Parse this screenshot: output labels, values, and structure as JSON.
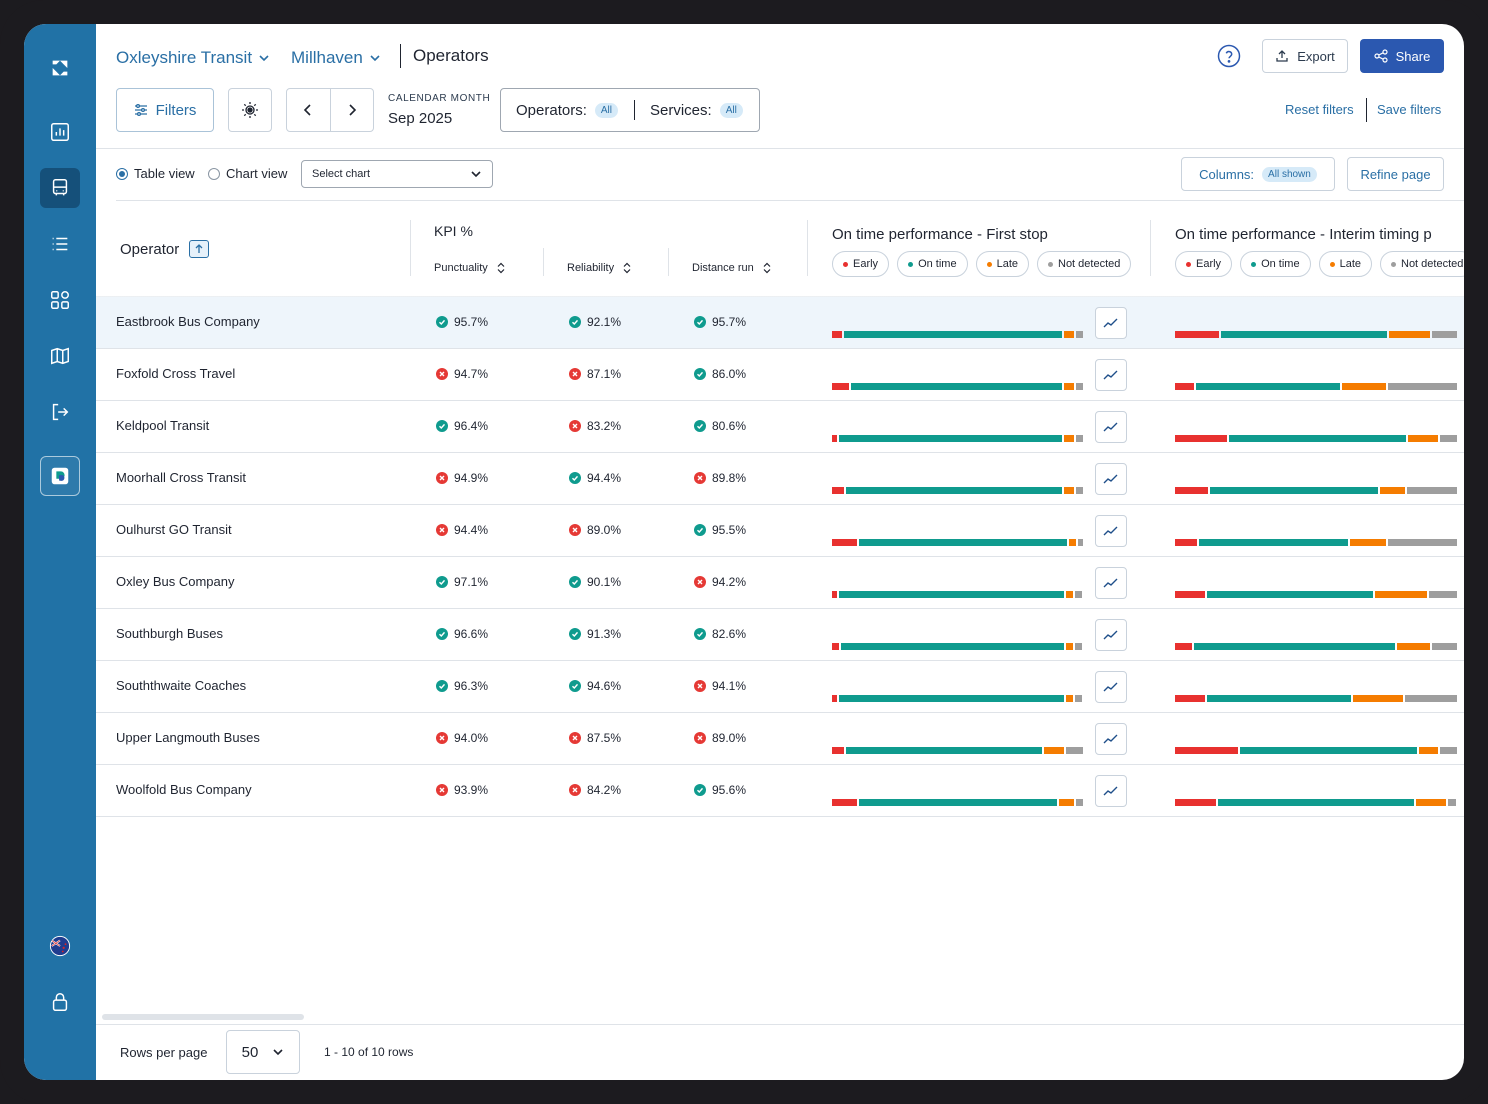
{
  "header": {
    "breadcrumb": [
      {
        "label": "Oxleyshire Transit"
      },
      {
        "label": "Millhaven"
      }
    ],
    "current": "Operators",
    "export_label": "Export",
    "share_label": "Share"
  },
  "filterbar": {
    "filters_label": "Filters",
    "calendar_label": "CALENDAR MONTH",
    "calendar_value": "Sep 2025",
    "operators_label": "Operators:",
    "operators_value": "All",
    "services_label": "Services:",
    "services_value": "All",
    "reset_label": "Reset filters",
    "save_label": "Save filters"
  },
  "viewbar": {
    "table_view": "Table view",
    "chart_view": "Chart view",
    "selected_view": "table",
    "select_chart_placeholder": "Select chart",
    "columns_label": "Columns:",
    "columns_value": "All shown",
    "refine_label": "Refine page"
  },
  "table": {
    "operator_header": "Operator",
    "kpi_header": "KPI %",
    "kpi_columns": [
      "Punctuality",
      "Reliability",
      "Distance run"
    ],
    "otp_groups": [
      {
        "title": "On time performance - First stop"
      },
      {
        "title": "On time performance - Interim timing p"
      }
    ],
    "legend": [
      {
        "label": "Early",
        "color": "#e8312f"
      },
      {
        "label": "On time",
        "color": "#0f9b8e"
      },
      {
        "label": "Late",
        "color": "#f57c00"
      },
      {
        "label": "Not detected",
        "color": "#9e9e9e"
      }
    ],
    "rows": [
      {
        "name": "Eastbrook Bus Company",
        "kpis": [
          {
            "v": "95.7%",
            "ok": true
          },
          {
            "v": "92.1%",
            "ok": true
          },
          {
            "v": "95.7%",
            "ok": true
          }
        ],
        "first": [
          4,
          89,
          4,
          3
        ],
        "interim": [
          16,
          60,
          15,
          9
        ]
      },
      {
        "name": "Foxfold Cross Travel",
        "kpis": [
          {
            "v": "94.7%",
            "ok": false
          },
          {
            "v": "87.1%",
            "ok": false
          },
          {
            "v": "86.0%",
            "ok": true
          }
        ],
        "first": [
          7,
          86,
          4,
          3
        ],
        "interim": [
          7,
          52,
          16,
          25
        ]
      },
      {
        "name": "Keldpool Transit",
        "kpis": [
          {
            "v": "96.4%",
            "ok": true
          },
          {
            "v": "83.2%",
            "ok": false
          },
          {
            "v": "80.6%",
            "ok": true
          }
        ],
        "first": [
          2,
          91,
          4,
          3
        ],
        "interim": [
          19,
          64,
          11,
          6
        ]
      },
      {
        "name": "Moorhall Cross Transit",
        "kpis": [
          {
            "v": "94.9%",
            "ok": false
          },
          {
            "v": "94.4%",
            "ok": true
          },
          {
            "v": "89.8%",
            "ok": false
          }
        ],
        "first": [
          5,
          88,
          4,
          3
        ],
        "interim": [
          12,
          61,
          9,
          18
        ]
      },
      {
        "name": "Oulhurst GO Transit",
        "kpis": [
          {
            "v": "94.4%",
            "ok": false
          },
          {
            "v": "89.0%",
            "ok": false
          },
          {
            "v": "95.5%",
            "ok": true
          }
        ],
        "first": [
          10,
          85,
          3,
          2
        ],
        "interim": [
          8,
          54,
          13,
          25
        ]
      },
      {
        "name": "Oxley Bus Company",
        "kpis": [
          {
            "v": "97.1%",
            "ok": true
          },
          {
            "v": "90.1%",
            "ok": true
          },
          {
            "v": "94.2%",
            "ok": false
          }
        ],
        "first": [
          2,
          92,
          3,
          3
        ],
        "interim": [
          11,
          60,
          19,
          10
        ]
      },
      {
        "name": "Southburgh Buses",
        "kpis": [
          {
            "v": "96.6%",
            "ok": true
          },
          {
            "v": "91.3%",
            "ok": true
          },
          {
            "v": "82.6%",
            "ok": true
          }
        ],
        "first": [
          3,
          91,
          3,
          3
        ],
        "interim": [
          6,
          73,
          12,
          9
        ]
      },
      {
        "name": "Souththwaite Coaches",
        "kpis": [
          {
            "v": "96.3%",
            "ok": true
          },
          {
            "v": "94.6%",
            "ok": true
          },
          {
            "v": "94.1%",
            "ok": false
          }
        ],
        "first": [
          2,
          92,
          3,
          3
        ],
        "interim": [
          11,
          52,
          18,
          19
        ]
      },
      {
        "name": "Upper Langmouth Buses",
        "kpis": [
          {
            "v": "94.0%",
            "ok": false
          },
          {
            "v": "87.5%",
            "ok": false
          },
          {
            "v": "89.0%",
            "ok": false
          }
        ],
        "first": [
          5,
          80,
          8,
          7
        ],
        "interim": [
          23,
          64,
          7,
          6
        ]
      },
      {
        "name": "Woolfold Bus Company",
        "kpis": [
          {
            "v": "93.9%",
            "ok": false
          },
          {
            "v": "84.2%",
            "ok": false
          },
          {
            "v": "95.6%",
            "ok": true
          }
        ],
        "first": [
          10,
          81,
          6,
          3
        ],
        "interim": [
          15,
          71,
          11,
          3
        ]
      }
    ]
  },
  "footer": {
    "rows_per_page_label": "Rows per page",
    "rows_per_page_value": "50",
    "range_text": "1 - 10 of 10 rows"
  },
  "icons": {
    "sidebar": [
      "logo-icon",
      "reports-icon",
      "bus-icon",
      "list-icon",
      "widgets-icon",
      "map-icon",
      "logout-icon",
      "app-icon",
      "flag-icon",
      "lock-icon"
    ]
  },
  "colors": {
    "sidebar": "#2172a6",
    "accent": "#2b58b0",
    "ok": "#0f9b8e",
    "bad": "#e53935"
  }
}
